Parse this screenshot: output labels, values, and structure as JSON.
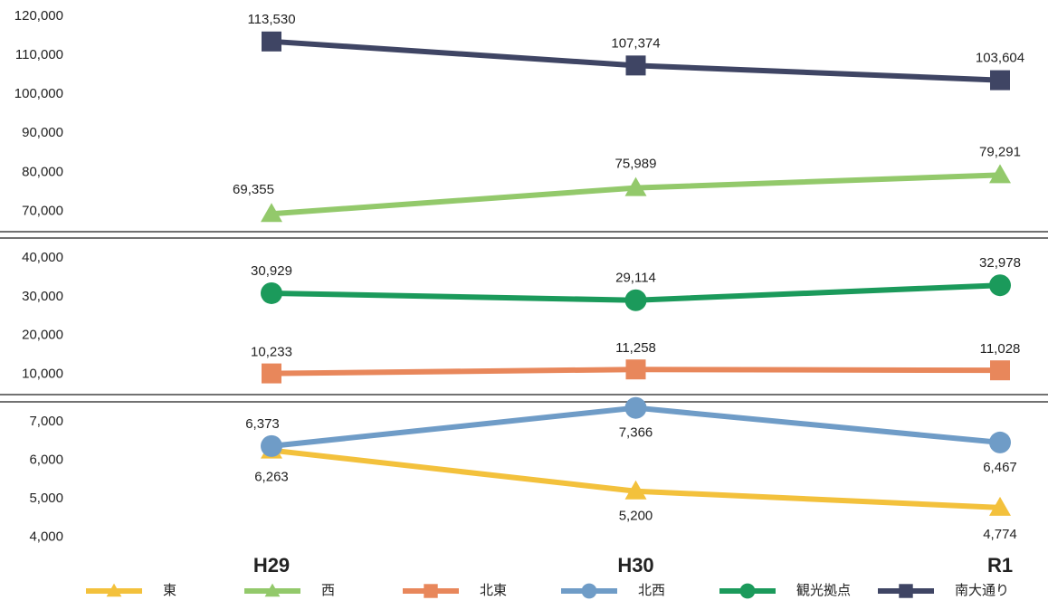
{
  "chart_data": {
    "type": "line",
    "categories": [
      "H29",
      "H30",
      "R1"
    ],
    "panels": [
      {
        "ylim": [
          65000,
          123000
        ],
        "yticks": [
          {
            "value": 70000,
            "label": "70,000"
          },
          {
            "value": 80000,
            "label": "80,000"
          },
          {
            "value": 90000,
            "label": "90,000"
          },
          {
            "value": 100000,
            "label": "100,000"
          },
          {
            "value": 110000,
            "label": "110,000"
          },
          {
            "value": 120000,
            "label": "120,000"
          }
        ]
      },
      {
        "ylim": [
          5000,
          44700
        ],
        "yticks": [
          {
            "value": 10000,
            "label": "10,000"
          },
          {
            "value": 20000,
            "label": "20,000"
          },
          {
            "value": 30000,
            "label": "30,000"
          },
          {
            "value": 40000,
            "label": "40,000"
          }
        ]
      },
      {
        "ylim": [
          3500,
          7500
        ],
        "yticks": [
          {
            "value": 4000,
            "label": "4,000"
          },
          {
            "value": 5000,
            "label": "5,000"
          },
          {
            "value": 6000,
            "label": "6,000"
          },
          {
            "value": 7000,
            "label": "7,000"
          }
        ]
      }
    ],
    "series": [
      {
        "name": "東",
        "color": "#f3c13c",
        "marker": "triangle",
        "panel": 2,
        "values": [
          6263,
          5200,
          4774
        ],
        "value_labels": [
          "6,263",
          "5,200",
          "4,774"
        ]
      },
      {
        "name": "西",
        "color": "#93c96b",
        "marker": "triangle",
        "panel": 0,
        "values": [
          69355,
          75989,
          79291
        ],
        "value_labels": [
          "69,355",
          "75,989",
          "79,291"
        ]
      },
      {
        "name": "北東",
        "color": "#e8875b",
        "marker": "square",
        "panel": 1,
        "values": [
          10233,
          11258,
          11028
        ],
        "value_labels": [
          "10,233",
          "11,258",
          "11,028"
        ]
      },
      {
        "name": "北西",
        "color": "#6f9cc7",
        "marker": "circle",
        "panel": 2,
        "values": [
          6373,
          7366,
          6467
        ],
        "value_labels": [
          "6,373",
          "7,366",
          "6,467"
        ]
      },
      {
        "name": "観光拠点",
        "color": "#1b9a5b",
        "marker": "circle",
        "panel": 1,
        "values": [
          30929,
          29114,
          32978
        ],
        "value_labels": [
          "30,929",
          "29,114",
          "32,978"
        ]
      },
      {
        "name": "南大通り",
        "color": "#3f4564",
        "marker": "square",
        "panel": 0,
        "values": [
          113530,
          107374,
          103604
        ],
        "value_labels": [
          "113,530",
          "107,374",
          "103,604"
        ]
      }
    ]
  }
}
